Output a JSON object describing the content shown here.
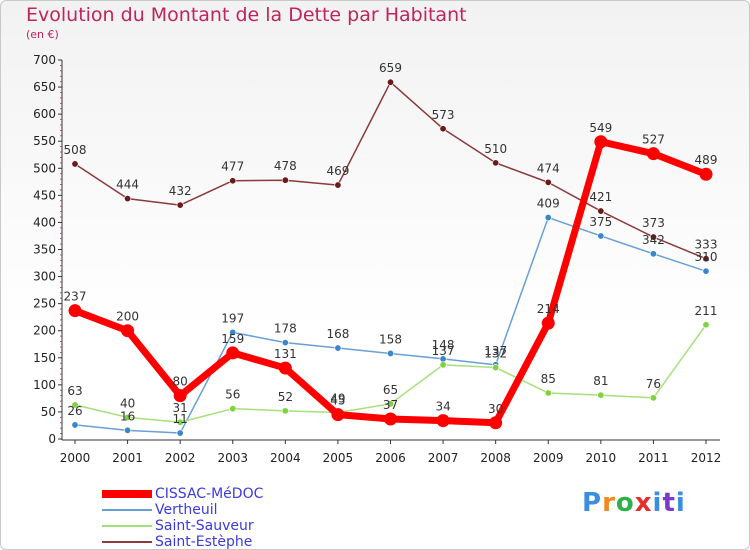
{
  "title": "Evolution du Montant de la Dette par Habitant",
  "subtitle": "(en €)",
  "brand": "Proxiti",
  "brand_colors": [
    "#3a8ee0",
    "#f08a1a",
    "#2fb04a",
    "#e0302a",
    "#3a8ee0",
    "#7a3cc8",
    "#3a8ee0"
  ],
  "chart_data": {
    "type": "line",
    "title": "Evolution du Montant de la Dette par Habitant",
    "subtitle": "(en €)",
    "x": [
      "2000",
      "2001",
      "2002",
      "2003",
      "2004",
      "2005",
      "2006",
      "2007",
      "2008",
      "2009",
      "2010",
      "2011",
      "2012"
    ],
    "ylim": [
      0,
      700
    ],
    "y_ticks": [
      "0",
      "50",
      "100",
      "150",
      "200",
      "250",
      "300",
      "350",
      "400",
      "450",
      "500",
      "550",
      "600",
      "650",
      "700"
    ],
    "grid": false,
    "legend_position": "bottom-left",
    "series": [
      {
        "name": "CISSAC-MéDOC",
        "color": "#ff0000",
        "marker": "#ff0000",
        "width": 7,
        "radius": 6.5,
        "values": [
          237,
          200,
          80,
          159,
          131,
          45,
          37,
          34,
          30,
          214,
          549,
          527,
          489
        ],
        "labels": [
          "237",
          "200",
          "80",
          "159",
          "131",
          "45",
          "37",
          "34",
          "30",
          "214",
          "549",
          "527",
          "489"
        ]
      },
      {
        "name": "Vertheuil",
        "color": "#6a9fd6",
        "marker": "#3a86cc",
        "width": 1.5,
        "radius": 3.2,
        "values": [
          26,
          16,
          11,
          197,
          178,
          168,
          158,
          148,
          137,
          409,
          375,
          342,
          310
        ],
        "labels": [
          "26",
          "16",
          "11",
          "197",
          "178",
          "168",
          "158",
          "148",
          "137",
          "409",
          "375",
          "342",
          "310"
        ]
      },
      {
        "name": "Saint-Sauveur",
        "color": "#a6e07a",
        "marker": "#7fd23c",
        "width": 1.5,
        "radius": 3.2,
        "values": [
          63,
          40,
          31,
          56,
          52,
          49,
          65,
          137,
          132,
          85,
          81,
          76,
          211
        ],
        "labels": [
          "63",
          "40",
          "31",
          "56",
          "52",
          "49",
          "65",
          "137",
          "132",
          "85",
          "81",
          "76",
          "211"
        ]
      },
      {
        "name": "Saint-Estèphe",
        "color": "#8a3a3a",
        "marker": "#6a1a1a",
        "width": 1.5,
        "radius": 3.2,
        "values": [
          508,
          444,
          432,
          477,
          478,
          469,
          659,
          573,
          510,
          474,
          421,
          373,
          333
        ],
        "labels": [
          "508",
          "444",
          "432",
          "477",
          "478",
          "469",
          "659",
          "573",
          "510",
          "474",
          "421",
          "373",
          "333"
        ]
      }
    ]
  }
}
